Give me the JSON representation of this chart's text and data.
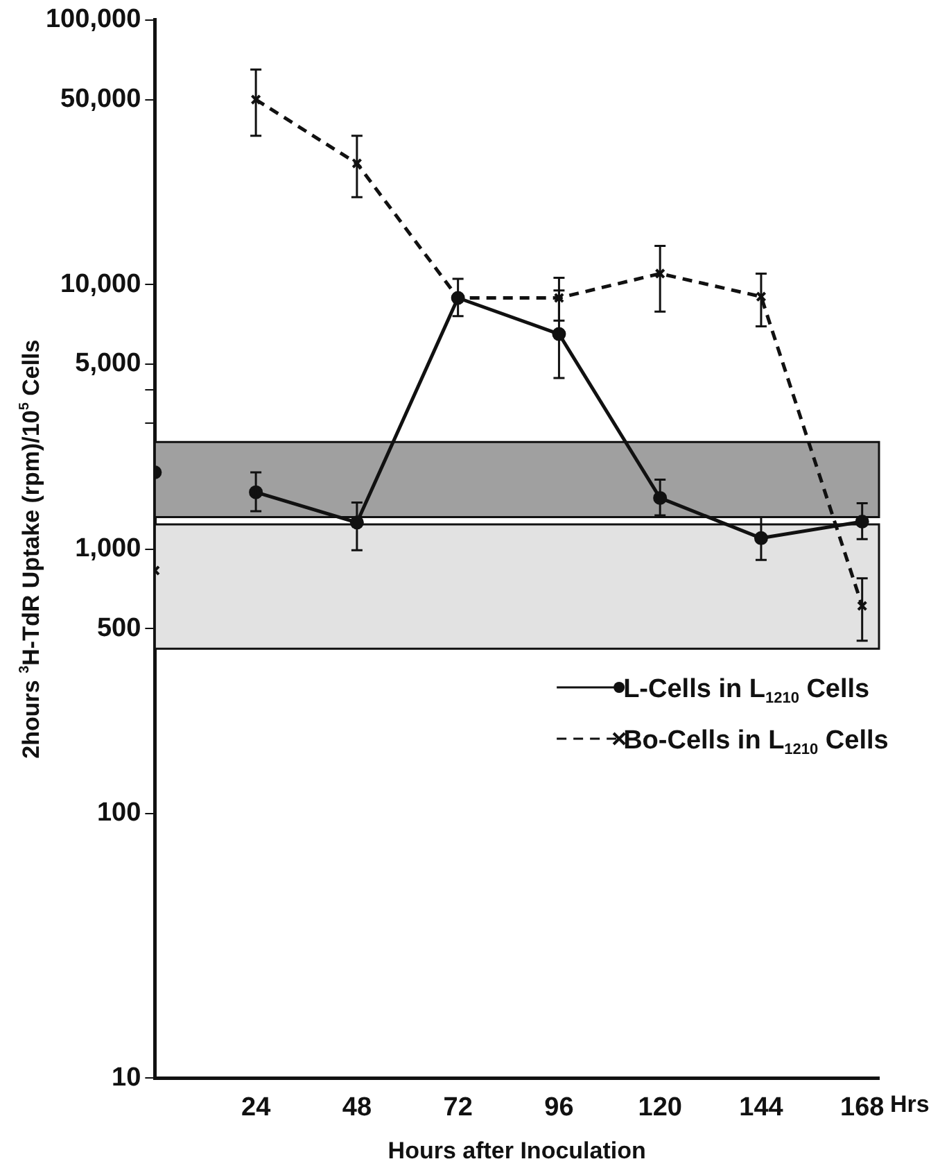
{
  "chart_data": {
    "type": "line",
    "xlabel": "Hours after Inoculation",
    "ylabel": "2hours $^{3}$H-TdR Uptake (rpm)/10$^{5}$ Cells",
    "log": "y",
    "x": [
      0,
      12,
      24,
      48,
      72,
      96,
      120,
      144,
      168
    ],
    "xlim": [
      0,
      172
    ],
    "xticks": [
      24,
      48,
      72,
      96,
      120,
      144,
      168
    ],
    "ylim": [
      10,
      100000
    ],
    "yticks": [
      {
        "value": 10,
        "label": "10"
      },
      {
        "value": 100,
        "label": "100"
      },
      {
        "value": 500,
        "label": "500"
      },
      {
        "value": 1000,
        "label": "1,000"
      },
      {
        "value": 3000,
        "label": null
      },
      {
        "value": 4000,
        "label": null
      },
      {
        "value": 5000,
        "label": "5,000"
      },
      {
        "value": 10000,
        "label": "10,000"
      },
      {
        "value": 50000,
        "label": "50,000"
      },
      {
        "value": 100000,
        "label": "100,000"
      }
    ],
    "series": [
      {
        "name": "L-Cells in L$_{1210}$ Cells",
        "color": "#111111",
        "marker": "circle",
        "line_style": "solid",
        "values": [
          1950,
          null,
          1640,
          1260,
          8900,
          6500,
          1560,
          1100,
          1270
        ],
        "errors": [
          null,
          null,
          [
            1390,
            1950
          ],
          [
            990,
            1500
          ],
          null,
          [
            4430,
            9500
          ],
          [
            1340,
            1830
          ],
          [
            910,
            1320
          ],
          [
            1090,
            1490
          ]
        ]
      },
      {
        "name": "Bo-Cells in L$_{1210}$ Cells",
        "color": "#111111",
        "marker": "cross",
        "line_style": "dashed",
        "values": [
          830,
          null,
          50000,
          28700,
          8900,
          8900,
          11000,
          9000,
          610
        ],
        "errors": [
          null,
          null,
          [
            36500,
            65000
          ],
          [
            21400,
            36500
          ],
          [
            7600,
            10500
          ],
          [
            7300,
            10600
          ],
          [
            7900,
            14000
          ],
          [
            6950,
            11000
          ],
          [
            450,
            775
          ]
        ]
      }
    ],
    "bands": [
      {
        "axis": "y",
        "from": 1320,
        "to": 2540,
        "color": "#a0a0a0"
      },
      {
        "axis": "y",
        "from": 420,
        "to": 1240,
        "color": "#e2e2e2"
      }
    ],
    "annotations": [
      "Hrs"
    ],
    "legend": "right"
  }
}
